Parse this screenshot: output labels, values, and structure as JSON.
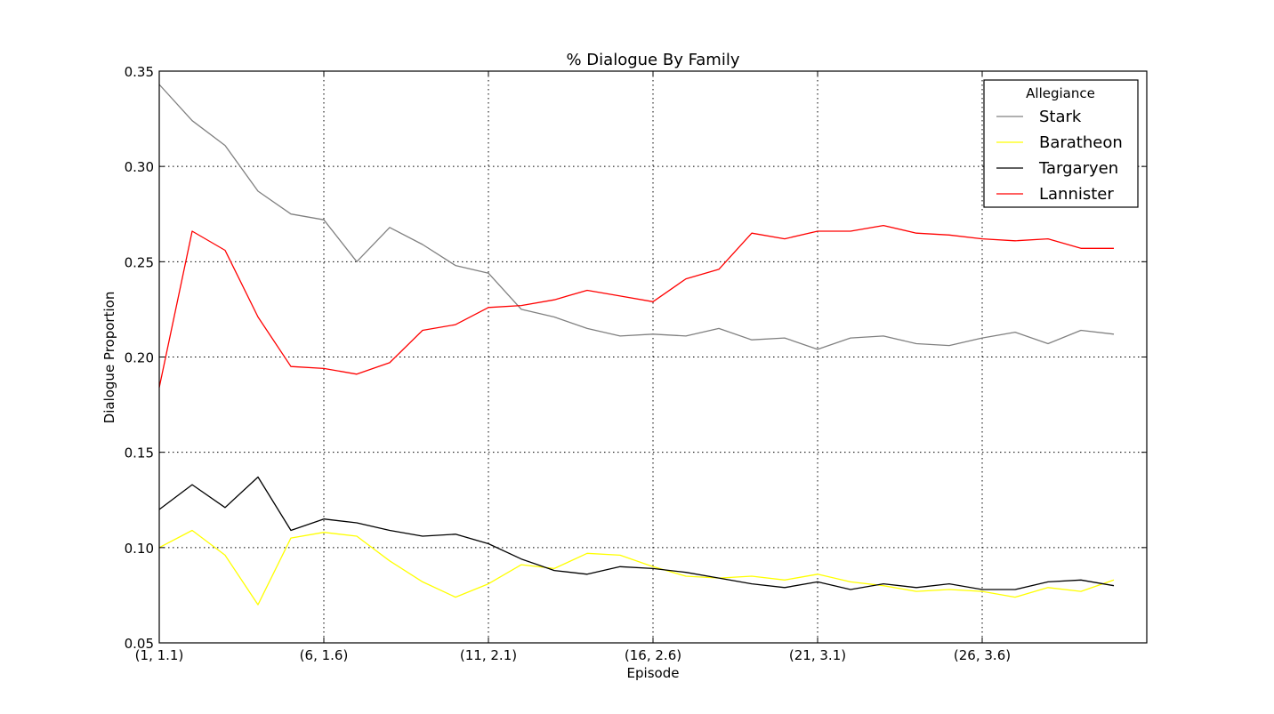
{
  "chart_data": {
    "type": "line",
    "title": "% Dialogue By Family",
    "xlabel": "Episode",
    "ylabel": "Dialogue Proportion",
    "x": [
      0,
      1,
      2,
      3,
      4,
      5,
      6,
      7,
      8,
      9,
      10,
      11,
      12,
      13,
      14,
      15,
      16,
      17,
      18,
      19,
      20,
      21,
      22,
      23,
      24,
      25,
      26,
      27,
      28,
      29
    ],
    "xlim": [
      0,
      30
    ],
    "x_ticks": [
      0,
      5,
      10,
      15,
      20,
      25
    ],
    "x_tick_labels": [
      "(1, 1.1)",
      "(6, 1.6)",
      "(11, 2.1)",
      "(16, 2.6)",
      "(21, 3.1)",
      "(26, 3.6)"
    ],
    "ylim": [
      0.05,
      0.35
    ],
    "y_ticks": [
      0.05,
      0.1,
      0.15,
      0.2,
      0.25,
      0.3,
      0.35
    ],
    "y_tick_labels": [
      "0.05",
      "0.10",
      "0.15",
      "0.20",
      "0.25",
      "0.30",
      "0.35"
    ],
    "grid": true,
    "legend_title": "Allegiance",
    "legend_position": "top-right",
    "series": [
      {
        "name": "Stark",
        "color": "#808080",
        "values": [
          0.343,
          0.324,
          0.311,
          0.287,
          0.275,
          0.272,
          0.25,
          0.268,
          0.259,
          0.248,
          0.244,
          0.225,
          0.221,
          0.215,
          0.211,
          0.212,
          0.211,
          0.215,
          0.209,
          0.21,
          0.204,
          0.21,
          0.211,
          0.207,
          0.206,
          0.21,
          0.213,
          0.207,
          0.214,
          0.212
        ]
      },
      {
        "name": "Baratheon",
        "color": "#ffff00",
        "values": [
          0.1,
          0.109,
          0.096,
          0.07,
          0.105,
          0.108,
          0.106,
          0.093,
          0.082,
          0.074,
          0.081,
          0.091,
          0.089,
          0.097,
          0.096,
          0.09,
          0.085,
          0.084,
          0.085,
          0.083,
          0.086,
          0.082,
          0.08,
          0.077,
          0.078,
          0.077,
          0.074,
          0.079,
          0.077,
          0.083
        ]
      },
      {
        "name": "Targaryen",
        "color": "#000000",
        "values": [
          0.12,
          0.133,
          0.121,
          0.137,
          0.109,
          0.115,
          0.113,
          0.109,
          0.106,
          0.107,
          0.102,
          0.094,
          0.088,
          0.086,
          0.09,
          0.089,
          0.087,
          0.084,
          0.081,
          0.079,
          0.082,
          0.078,
          0.081,
          0.079,
          0.081,
          0.078,
          0.078,
          0.082,
          0.083,
          0.08
        ]
      },
      {
        "name": "Lannister",
        "color": "#ff0000",
        "values": [
          0.184,
          0.266,
          0.256,
          0.221,
          0.195,
          0.194,
          0.191,
          0.197,
          0.214,
          0.217,
          0.226,
          0.227,
          0.23,
          0.235,
          0.232,
          0.229,
          0.241,
          0.246,
          0.265,
          0.262,
          0.266,
          0.266,
          0.269,
          0.265,
          0.264,
          0.262,
          0.261,
          0.262,
          0.257,
          0.257
        ]
      }
    ]
  }
}
